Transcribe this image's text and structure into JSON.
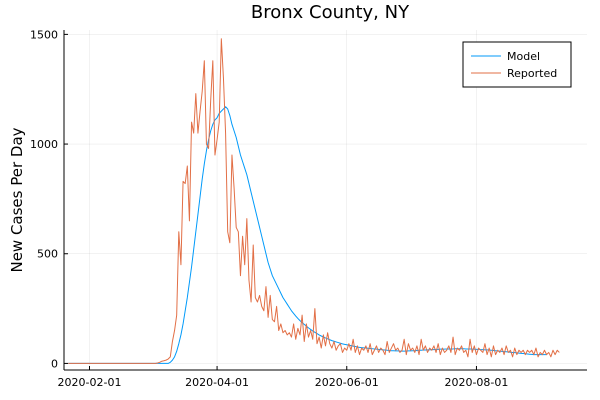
{
  "chart_data": {
    "type": "line",
    "title": "Bronx County, NY",
    "xlabel": "",
    "ylabel": "New Cases Per Day",
    "x_type": "date",
    "x_start": "2020-01-22",
    "x_end": "2020-09-15",
    "xlim": [
      "2020-01-20",
      "2020-09-22"
    ],
    "ylim": [
      -30,
      1520
    ],
    "xticks": [
      "2020-02-01",
      "2020-04-01",
      "2020-06-01",
      "2020-08-01"
    ],
    "yticks": [
      0,
      500,
      1000,
      1500
    ],
    "grid": true,
    "legend_position": "top-right",
    "series": [
      {
        "name": "Model",
        "color": "#009AFA",
        "values": [
          0,
          0,
          0,
          0,
          0,
          0,
          0,
          0,
          0,
          0,
          0,
          0,
          0,
          0,
          0,
          0,
          0,
          0,
          0,
          0,
          0,
          0,
          0,
          0,
          0,
          0,
          0,
          0,
          0,
          0,
          0,
          0,
          0,
          0,
          0,
          0,
          0,
          0,
          0,
          0,
          0,
          0,
          0,
          0,
          0,
          0,
          0,
          0,
          5,
          15,
          30,
          55,
          90,
          130,
          180,
          240,
          300,
          370,
          440,
          520,
          600,
          680,
          760,
          840,
          910,
          970,
          1020,
          1060,
          1090,
          1110,
          1120,
          1140,
          1150,
          1160,
          1170,
          1160,
          1130,
          1090,
          1060,
          1030,
          990,
          950,
          920,
          890,
          860,
          820,
          780,
          740,
          700,
          660,
          620,
          580,
          540,
          500,
          460,
          430,
          400,
          380,
          360,
          340,
          320,
          300,
          285,
          270,
          255,
          240,
          228,
          216,
          205,
          195,
          186,
          178,
          170,
          162,
          155,
          148,
          142,
          136,
          130,
          125,
          120,
          116,
          112,
          108,
          104,
          101,
          98,
          95,
          92,
          89,
          87,
          85,
          83,
          81,
          79,
          77,
          75,
          73,
          72,
          71,
          70,
          69,
          68,
          67,
          66,
          65,
          64,
          63,
          62,
          61,
          60,
          59,
          58,
          58,
          57,
          57,
          56,
          56,
          56,
          56,
          57,
          57,
          58,
          58,
          59,
          60,
          60,
          61,
          61,
          62,
          62,
          63,
          63,
          64,
          64,
          65,
          65,
          65,
          66,
          66,
          66,
          66,
          67,
          67,
          67,
          67,
          67,
          66,
          66,
          66,
          65,
          65,
          64,
          64,
          63,
          63,
          62,
          62,
          61,
          60,
          59,
          58,
          57,
          56,
          55,
          54,
          53,
          52,
          51,
          50,
          49,
          48,
          47,
          46,
          45,
          44,
          43,
          42,
          41,
          40,
          40,
          40,
          40,
          40,
          40,
          40
        ]
      },
      {
        "name": "Reported",
        "color": "#E26F46",
        "values": [
          0,
          0,
          0,
          0,
          0,
          0,
          0,
          0,
          0,
          0,
          0,
          0,
          0,
          0,
          0,
          0,
          0,
          0,
          0,
          0,
          0,
          0,
          0,
          0,
          0,
          0,
          0,
          0,
          0,
          0,
          0,
          0,
          0,
          0,
          0,
          0,
          0,
          0,
          0,
          0,
          0,
          0,
          2,
          5,
          10,
          12,
          15,
          20,
          30,
          100,
          150,
          220,
          600,
          450,
          830,
          820,
          900,
          650,
          1100,
          1050,
          1230,
          1050,
          1150,
          1240,
          1380,
          1000,
          980,
          1200,
          1380,
          950,
          1020,
          1100,
          1480,
          1300,
          1050,
          600,
          550,
          950,
          800,
          620,
          600,
          400,
          580,
          450,
          660,
          380,
          280,
          540,
          300,
          280,
          310,
          260,
          240,
          350,
          210,
          310,
          200,
          190,
          260,
          150,
          180,
          140,
          150,
          130,
          140,
          120,
          180,
          110,
          160,
          130,
          220,
          100,
          180,
          120,
          150,
          110,
          250,
          90,
          120,
          70,
          130,
          80,
          140,
          90,
          70,
          100,
          60,
          80,
          90,
          50,
          70,
          60,
          90,
          60,
          110,
          50,
          80,
          40,
          70,
          60,
          80,
          50,
          90,
          40,
          60,
          80,
          50,
          70,
          60,
          40,
          100,
          50,
          70,
          90,
          60,
          70,
          50,
          60,
          110,
          40,
          90,
          60,
          70,
          50,
          80,
          40,
          110,
          60,
          80,
          50,
          70,
          60,
          80,
          50,
          90,
          40,
          70,
          50,
          60,
          80,
          50,
          120,
          40,
          70,
          60,
          80,
          50,
          60,
          30,
          110,
          50,
          80,
          40,
          70,
          60,
          50,
          90,
          40,
          70,
          30,
          80,
          40,
          60,
          50,
          70,
          40,
          80,
          50,
          60,
          30,
          70,
          40,
          60,
          50,
          60,
          40,
          60,
          50,
          60,
          40,
          70,
          30,
          50,
          40,
          60,
          40,
          50,
          30,
          60,
          40,
          60,
          50
        ]
      }
    ]
  }
}
